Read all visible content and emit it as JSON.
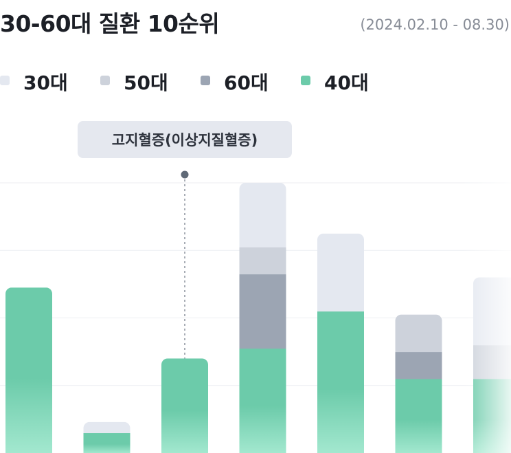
{
  "header": {
    "title": "30-60대 질환 10순위",
    "date_range": "(2024.02.10 - 08.30)"
  },
  "legend": [
    {
      "label": "30대",
      "color": "#e4e8f0"
    },
    {
      "label": "50대",
      "color": "#cdd2db"
    },
    {
      "label": "60대",
      "color": "#9ca5b3"
    },
    {
      "label": "40대",
      "color": "#6ccbaa"
    }
  ],
  "tooltip": {
    "label": "고지혈증(이상지질혈증)"
  },
  "colors": {
    "s30": "#e4e8f0",
    "s50": "#cdd2db",
    "s60": "#9ca5b3",
    "s40_top": "#6ccbaa",
    "s40_bottom": "#a3e8cf",
    "grid": "#eceef2",
    "marker": "#5f6977"
  },
  "chart_data": {
    "type": "bar",
    "stacked": true,
    "title": "30-60대 질환 10순위",
    "ylim": [
      0,
      4
    ],
    "grid": true,
    "legend_position": "top-left",
    "categories": [
      "",
      "",
      "고지혈증(이상지질혈증)",
      "",
      "",
      "",
      ""
    ],
    "series": [
      {
        "name": "40대",
        "values": [
          2.45,
          0.3,
          1.4,
          1.55,
          2.1,
          1.1,
          1.1
        ]
      },
      {
        "name": "60대",
        "values": [
          0,
          0,
          0,
          1.1,
          0,
          0.4,
          0
        ]
      },
      {
        "name": "50대",
        "values": [
          0,
          0,
          0,
          0.4,
          0,
          0.55,
          0.5
        ]
      },
      {
        "name": "30대",
        "values": [
          0,
          0.16,
          0,
          0.95,
          1.15,
          0,
          1.0
        ]
      }
    ],
    "highlighted_category_index": 2
  }
}
